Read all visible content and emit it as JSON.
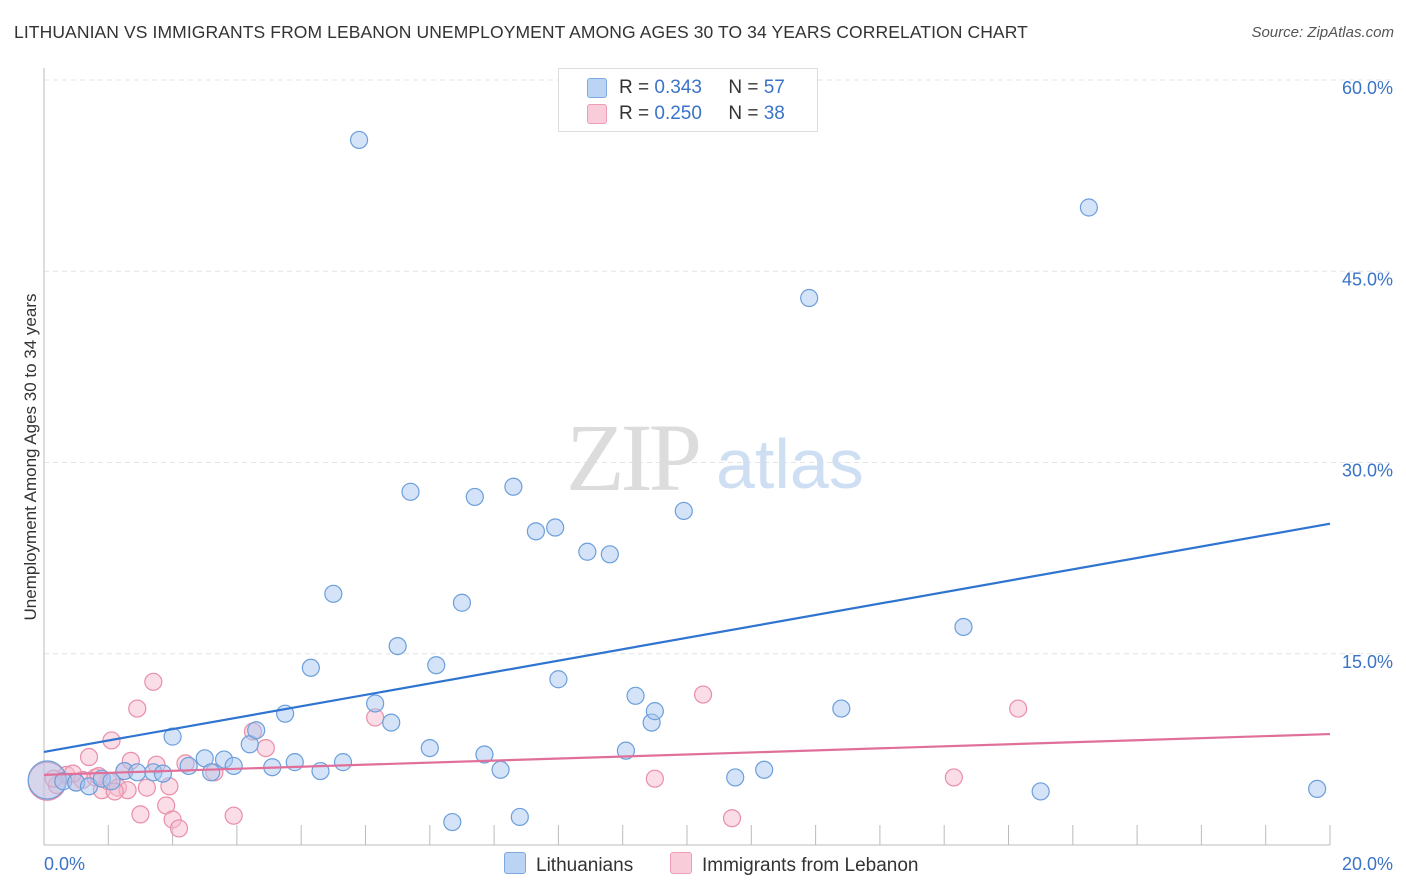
{
  "title": "LITHUANIAN VS IMMIGRANTS FROM LEBANON UNEMPLOYMENT AMONG AGES 30 TO 34 YEARS CORRELATION CHART",
  "source": "Source: ZipAtlas.com",
  "watermark": {
    "zip": "ZIP",
    "atlas": "atlas"
  },
  "colors": {
    "blue_fill": "#a9c8ef",
    "blue_stroke": "#6b9fdb",
    "blue_line": "#2f74d0",
    "pink_fill": "#f6bccd",
    "pink_stroke": "#e98ea9",
    "pink_line": "#e0709a",
    "axis_label": "#3b73c7",
    "grid": "#e4e4e4"
  },
  "legend": {
    "rows": [
      {
        "r_label": "R =",
        "r_value": "0.343",
        "n_label": "N =",
        "n_value": "57"
      },
      {
        "r_label": "R =",
        "r_value": "0.250",
        "n_label": "N =",
        "n_value": "38"
      }
    ]
  },
  "bottom_legend": [
    "Lithuanians",
    "Immigrants from Lebanon"
  ],
  "chart_data": {
    "type": "scatter",
    "title": "LITHUANIAN VS IMMIGRANTS FROM LEBANON UNEMPLOYMENT AMONG AGES 30 TO 34 YEARS CORRELATION CHART",
    "xlabel": "",
    "ylabel": "Unemployment Among Ages 30 to 34 years",
    "xlim": [
      0,
      20
    ],
    "ylim": [
      0,
      60
    ],
    "x_tick_labels": [
      {
        "value": 0,
        "label": "0.0%"
      },
      {
        "value": 20,
        "label": "20.0%"
      }
    ],
    "y_tick_labels": [
      {
        "value": 15,
        "label": "15.0%"
      },
      {
        "value": 30,
        "label": "30.0%"
      },
      {
        "value": 45,
        "label": "45.0%"
      },
      {
        "value": 60,
        "label": "60.0%"
      }
    ],
    "series": [
      {
        "name": "Lithuanians",
        "r": 0.343,
        "n": 57,
        "trend": {
          "x": [
            0,
            20
          ],
          "y": [
            7.3,
            25.2
          ]
        },
        "points": [
          {
            "x": 0.05,
            "y": 5.1,
            "big": true
          },
          {
            "x": 0.3,
            "y": 5.0
          },
          {
            "x": 0.5,
            "y": 4.9
          },
          {
            "x": 0.7,
            "y": 4.6
          },
          {
            "x": 0.9,
            "y": 5.2
          },
          {
            "x": 1.05,
            "y": 5.0
          },
          {
            "x": 1.25,
            "y": 5.8
          },
          {
            "x": 1.45,
            "y": 5.7
          },
          {
            "x": 1.7,
            "y": 5.7
          },
          {
            "x": 1.85,
            "y": 5.6
          },
          {
            "x": 2.0,
            "y": 8.5
          },
          {
            "x": 2.25,
            "y": 6.2
          },
          {
            "x": 2.5,
            "y": 6.8
          },
          {
            "x": 2.6,
            "y": 5.7
          },
          {
            "x": 2.8,
            "y": 6.7
          },
          {
            "x": 2.95,
            "y": 6.2
          },
          {
            "x": 3.2,
            "y": 7.9
          },
          {
            "x": 3.3,
            "y": 9.0
          },
          {
            "x": 3.55,
            "y": 6.1
          },
          {
            "x": 3.75,
            "y": 10.3
          },
          {
            "x": 3.9,
            "y": 6.5
          },
          {
            "x": 4.15,
            "y": 13.9
          },
          {
            "x": 4.3,
            "y": 5.8
          },
          {
            "x": 4.5,
            "y": 19.7
          },
          {
            "x": 4.65,
            "y": 6.5
          },
          {
            "x": 4.9,
            "y": 55.3
          },
          {
            "x": 5.15,
            "y": 11.1
          },
          {
            "x": 5.4,
            "y": 9.6
          },
          {
            "x": 5.5,
            "y": 15.6
          },
          {
            "x": 5.7,
            "y": 27.7
          },
          {
            "x": 6.0,
            "y": 7.6
          },
          {
            "x": 6.1,
            "y": 14.1
          },
          {
            "x": 6.35,
            "y": 1.8
          },
          {
            "x": 6.5,
            "y": 19.0
          },
          {
            "x": 6.7,
            "y": 27.3
          },
          {
            "x": 6.85,
            "y": 7.1
          },
          {
            "x": 7.1,
            "y": 5.9
          },
          {
            "x": 7.3,
            "y": 28.1
          },
          {
            "x": 7.4,
            "y": 2.2
          },
          {
            "x": 7.65,
            "y": 24.6
          },
          {
            "x": 7.95,
            "y": 24.9
          },
          {
            "x": 8.0,
            "y": 13.0
          },
          {
            "x": 8.45,
            "y": 23.0
          },
          {
            "x": 8.8,
            "y": 22.8
          },
          {
            "x": 9.05,
            "y": 7.4
          },
          {
            "x": 9.2,
            "y": 11.7
          },
          {
            "x": 9.45,
            "y": 9.6
          },
          {
            "x": 9.5,
            "y": 10.5
          },
          {
            "x": 9.95,
            "y": 26.2
          },
          {
            "x": 10.75,
            "y": 5.3
          },
          {
            "x": 11.2,
            "y": 5.9
          },
          {
            "x": 11.9,
            "y": 42.9
          },
          {
            "x": 12.4,
            "y": 10.7
          },
          {
            "x": 14.3,
            "y": 17.1
          },
          {
            "x": 15.5,
            "y": 4.2
          },
          {
            "x": 16.25,
            "y": 50.0
          },
          {
            "x": 19.8,
            "y": 4.4
          }
        ]
      },
      {
        "name": "Immigrants from Lebanon",
        "r": 0.25,
        "n": 38,
        "trend": {
          "x": [
            0,
            20
          ],
          "y": [
            5.5,
            8.7
          ]
        },
        "points": [
          {
            "x": 0.05,
            "y": 5.0,
            "big": true
          },
          {
            "x": 0.2,
            "y": 4.7
          },
          {
            "x": 0.35,
            "y": 5.5
          },
          {
            "x": 0.5,
            "y": 4.9
          },
          {
            "x": 0.6,
            "y": 5.1
          },
          {
            "x": 0.7,
            "y": 6.9
          },
          {
            "x": 0.8,
            "y": 5.3
          },
          {
            "x": 0.9,
            "y": 4.3
          },
          {
            "x": 1.0,
            "y": 5.0
          },
          {
            "x": 1.05,
            "y": 8.2
          },
          {
            "x": 1.15,
            "y": 4.5
          },
          {
            "x": 1.25,
            "y": 5.8
          },
          {
            "x": 1.3,
            "y": 4.3
          },
          {
            "x": 1.35,
            "y": 6.6
          },
          {
            "x": 1.45,
            "y": 10.7
          },
          {
            "x": 1.5,
            "y": 2.4
          },
          {
            "x": 1.6,
            "y": 4.5
          },
          {
            "x": 1.7,
            "y": 12.8
          },
          {
            "x": 1.75,
            "y": 6.3
          },
          {
            "x": 1.9,
            "y": 3.1
          },
          {
            "x": 1.95,
            "y": 4.6
          },
          {
            "x": 2.0,
            "y": 2.0
          },
          {
            "x": 2.1,
            "y": 1.3
          },
          {
            "x": 2.2,
            "y": 6.4
          },
          {
            "x": 2.65,
            "y": 5.7
          },
          {
            "x": 2.95,
            "y": 2.3
          },
          {
            "x": 3.25,
            "y": 8.9
          },
          {
            "x": 3.45,
            "y": 7.6
          },
          {
            "x": 5.15,
            "y": 10.0
          },
          {
            "x": 9.5,
            "y": 5.2
          },
          {
            "x": 10.25,
            "y": 11.8
          },
          {
            "x": 10.7,
            "y": 2.1
          },
          {
            "x": 14.15,
            "y": 5.3
          },
          {
            "x": 15.15,
            "y": 10.7
          },
          {
            "x": 0.15,
            "y": 5.2
          },
          {
            "x": 0.45,
            "y": 5.6
          },
          {
            "x": 0.85,
            "y": 5.4
          },
          {
            "x": 1.1,
            "y": 4.2
          }
        ]
      }
    ]
  }
}
